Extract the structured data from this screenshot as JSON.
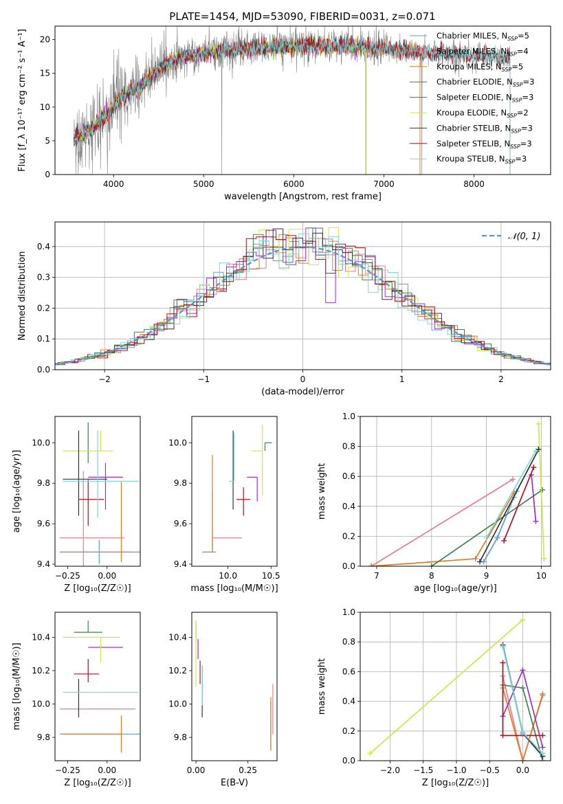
{
  "figure_title": "PLATE=1454, MJD=53090, FIBERID=0031, z=0.071",
  "colors": {
    "Chabrier MILES": "#5b9bd5",
    "Salpeter MILES": "#e87c8c",
    "Kroupa MILES": "#e07b1f",
    "Chabrier ELODIE": "#3f7f4f",
    "Salpeter ELODIE": "#9b30c0",
    "Kroupa ELODIE": "#cfe64a",
    "Chabrier STELIB": "#333333",
    "Salpeter STELIB": "#b01020",
    "Kroupa STELIB": "#7fd6d8",
    "data": "#808080",
    "normal": "#5b8fd0"
  },
  "chart_data": [
    {
      "id": "spectrum",
      "type": "line",
      "xlabel": "wavelength [Angstrom, rest frame]",
      "ylabel": "Flux [f_λ 10⁻¹⁷ erg cm⁻² s⁻¹ A⁻¹]",
      "xlim": [
        3350,
        8850
      ],
      "ylim": [
        0,
        22
      ],
      "xticks": [
        4000,
        5000,
        6000,
        7000,
        8000
      ],
      "yticks": [
        0,
        5,
        10,
        15,
        20
      ],
      "grid": false,
      "legend_position": "upper-right",
      "legend": [
        {
          "base": "Chabrier MILES, N",
          "sub": "SSP",
          "suffix": "=5"
        },
        {
          "base": "Salpeter MILES, N",
          "sub": "SSP",
          "suffix": "=4"
        },
        {
          "base": "Kroupa MILES, N",
          "sub": "SSP",
          "suffix": "=5"
        },
        {
          "base": "Chabrier ELODIE, N",
          "sub": "SSP",
          "suffix": "=3"
        },
        {
          "base": "Salpeter ELODIE, N",
          "sub": "SSP",
          "suffix": "=3"
        },
        {
          "base": "Kroupa ELODIE, N",
          "sub": "SSP",
          "suffix": "=2"
        },
        {
          "base": "Chabrier STELIB, N",
          "sub": "SSP",
          "suffix": "=3"
        },
        {
          "base": "Salpeter STELIB, N",
          "sub": "SSP",
          "suffix": "=3"
        },
        {
          "base": "Kroupa STELIB, N",
          "sub": "SSP",
          "suffix": "=3"
        }
      ],
      "continuum": {
        "x": [
          3550,
          3650,
          3750,
          3850,
          3950,
          4050,
          4150,
          4300,
          4450,
          4600,
          4800,
          5000,
          5200,
          5400,
          5600,
          5800,
          6000,
          6200,
          6400,
          6600,
          6800,
          7000,
          7200,
          7400,
          7600,
          7800,
          8000,
          8200,
          8400
        ],
        "y": [
          5.0,
          6.0,
          6.8,
          8.0,
          9.0,
          11.0,
          12.0,
          13.0,
          15.0,
          16.5,
          17.5,
          18.0,
          18.5,
          18.5,
          18.7,
          19.0,
          19.0,
          19.2,
          19.0,
          19.0,
          18.9,
          18.7,
          18.4,
          18.2,
          18.0,
          17.8,
          17.7,
          17.5,
          17.3
        ]
      },
      "dips": [
        {
          "x": 3933,
          "y": 0
        },
        {
          "x": 5200,
          "y": 0
        },
        {
          "x": 6800,
          "y": 0
        },
        {
          "x": 7420,
          "y": 0
        }
      ]
    },
    {
      "id": "residual-histogram",
      "type": "histogram",
      "xlabel": "(data-model)/error",
      "ylabel": "Normed distribution",
      "xlim": [
        -2.5,
        2.5
      ],
      "ylim": [
        0,
        0.48
      ],
      "xticks": [
        -2,
        -1,
        0,
        1,
        2
      ],
      "yticks": [
        0.0,
        0.1,
        0.2,
        0.3,
        0.4
      ],
      "grid": true,
      "legend_position": "upper-right",
      "legend": [
        {
          "label": "𝒩(0, 1)"
        }
      ],
      "bin_width": 0.1,
      "normal": {
        "mean": 0,
        "sigma": 1
      }
    },
    {
      "id": "age-vs-Z",
      "type": "errorbar",
      "xlabel": "Z [log₁₀(Z/Z☉)]",
      "ylabel": "age [log₁₀(age/yr)]",
      "xlim": [
        -0.33,
        0.21
      ],
      "ylim": [
        9.39,
        10.13
      ],
      "xticks": [
        -0.25,
        0.0
      ],
      "yticks": [
        9.4,
        9.6,
        9.8,
        10.0
      ],
      "grid": false,
      "points": [
        {
          "model": "Chabrier MILES",
          "x": -0.05,
          "xerr": [
            0.25,
            0.3
          ],
          "y": 9.46,
          "yerr": [
            0.06,
            0.06
          ]
        },
        {
          "model": "Salpeter MILES",
          "x": -0.15,
          "xerr": [
            0.15,
            0.26
          ],
          "y": 9.53,
          "yerr": [
            0.2,
            0.33
          ]
        },
        {
          "model": "Kroupa MILES",
          "x": 0.09,
          "xerr": [
            0.38,
            0.06
          ],
          "y": 9.46,
          "yerr": [
            0.05,
            0.35
          ]
        },
        {
          "model": "Chabrier ELODIE",
          "x": -0.12,
          "xerr": [
            0.0,
            0.0
          ],
          "y": 10.0,
          "yerr": [
            0.1,
            0.1
          ]
        },
        {
          "model": "Salpeter ELODIE",
          "x": -0.01,
          "xerr": [
            0.11,
            0.11
          ],
          "y": 9.83,
          "yerr": [
            0.16,
            0.07
          ]
        },
        {
          "model": "Kroupa ELODIE",
          "x": -0.04,
          "xerr": [
            0.24,
            0.08
          ],
          "y": 9.96,
          "yerr": [
            0.0,
            0.1
          ]
        },
        {
          "model": "Chabrier STELIB",
          "x": -0.18,
          "xerr": [
            0.1,
            0.18
          ],
          "y": 9.82,
          "yerr": [
            0.18,
            0.24
          ]
        },
        {
          "model": "Salpeter STELIB",
          "x": -0.12,
          "xerr": [
            0.06,
            0.1
          ],
          "y": 9.72,
          "yerr": [
            0.13,
            0.1
          ]
        },
        {
          "model": "Kroupa STELIB",
          "x": -0.06,
          "xerr": [
            0.22,
            0.26
          ],
          "y": 9.81,
          "yerr": [
            0.18,
            0.25
          ]
        }
      ]
    },
    {
      "id": "age-vs-mass",
      "type": "errorbar",
      "xlabel": "mass [log₁₀(M/M☉)]",
      "ylabel": "",
      "xlim": [
        9.58,
        10.57
      ],
      "ylim": [
        9.39,
        10.13
      ],
      "xticks": [
        10.0,
        10.5
      ],
      "yticks": [
        9.4,
        9.6,
        9.8,
        10.0
      ],
      "grid": false,
      "points": [
        {
          "model": "Chabrier MILES",
          "x": 9.82,
          "xerr": [
            0.1,
            0.04
          ],
          "y": 9.46,
          "yerr": [
            0.0,
            0.3
          ]
        },
        {
          "model": "Salpeter MILES",
          "x": 9.97,
          "xerr": [
            0.15,
            0.19
          ],
          "y": 9.53,
          "yerr": [
            0.0,
            0.0
          ]
        },
        {
          "model": "Kroupa MILES",
          "x": 9.82,
          "xerr": [
            0.12,
            0.0
          ],
          "y": 9.46,
          "yerr": [
            0.0,
            0.48
          ]
        },
        {
          "model": "Chabrier ELODIE",
          "x": 10.43,
          "xerr": [
            0.0,
            0.08
          ],
          "y": 10.0,
          "yerr": [
            0.04,
            0.0
          ]
        },
        {
          "model": "Salpeter ELODIE",
          "x": 10.34,
          "xerr": [
            0.12,
            0.0
          ],
          "y": 9.83,
          "yerr": [
            0.12,
            0.0
          ]
        },
        {
          "model": "Kroupa ELODIE",
          "x": 10.4,
          "xerr": [
            0.13,
            0.0
          ],
          "y": 9.96,
          "yerr": [
            0.22,
            0.13
          ]
        },
        {
          "model": "Chabrier STELIB",
          "x": 10.06,
          "xerr": [
            0.0,
            0.0
          ],
          "y": 9.82,
          "yerr": [
            0.15,
            0.24
          ]
        },
        {
          "model": "Salpeter STELIB",
          "x": 10.18,
          "xerr": [
            0.08,
            0.08
          ],
          "y": 9.72,
          "yerr": [
            0.08,
            0.06
          ]
        },
        {
          "model": "Kroupa STELIB",
          "x": 10.07,
          "xerr": [
            0.06,
            0.0
          ],
          "y": 9.81,
          "yerr": [
            0.0,
            0.24
          ]
        }
      ]
    },
    {
      "id": "weight-vs-age",
      "type": "line",
      "xlabel": "age [log₁₀(age/yr)]",
      "ylabel": "mass weight",
      "xlim": [
        6.7,
        10.17
      ],
      "ylim": [
        0,
        1.0
      ],
      "xticks": [
        7,
        8,
        9,
        10
      ],
      "yticks": [
        0.0,
        0.2,
        0.4,
        0.6,
        0.8,
        1.0
      ],
      "grid": true,
      "series": [
        {
          "model": "Salpeter MILES",
          "x": [
            6.9,
            9.48
          ],
          "y": [
            0.0,
            0.58
          ]
        },
        {
          "model": "Chabrier MILES",
          "x": [
            8.95,
            9.2,
            9.5,
            9.55,
            9.95
          ],
          "y": [
            0.03,
            0.19,
            0.46,
            0.5,
            0.78
          ]
        },
        {
          "model": "Kroupa MILES",
          "x": [
            6.9,
            8.8,
            9.5
          ],
          "y": [
            0.0,
            0.05,
            0.49
          ]
        },
        {
          "model": "Chabrier ELODIE",
          "x": [
            8.0,
            10.02
          ],
          "y": [
            0.0,
            0.51
          ]
        },
        {
          "model": "Salpeter ELODIE",
          "x": [
            9.82,
            9.9
          ],
          "y": [
            0.61,
            0.3
          ]
        },
        {
          "model": "Kroupa ELODIE",
          "x": [
            9.95,
            10.05
          ],
          "y": [
            0.95,
            0.05
          ]
        },
        {
          "model": "Chabrier STELIB",
          "x": [
            8.88,
            9.95
          ],
          "y": [
            0.03,
            0.78
          ]
        },
        {
          "model": "Salpeter STELIB",
          "x": [
            9.32,
            9.86
          ],
          "y": [
            0.17,
            0.66
          ]
        },
        {
          "model": "Kroupa STELIB",
          "x": [
            9.0,
            9.9
          ],
          "y": [
            0.19,
            0.77
          ]
        }
      ]
    },
    {
      "id": "mass-vs-Z",
      "type": "errorbar",
      "xlabel": "Z [log₁₀(Z/Z☉)]",
      "ylabel": "mass [log₁₀(M/M☉)]",
      "xlim": [
        -0.33,
        0.21
      ],
      "ylim": [
        9.66,
        10.55
      ],
      "xticks": [
        -0.25,
        0.0
      ],
      "yticks": [
        9.8,
        10.0,
        10.2,
        10.4
      ],
      "grid": false,
      "points": [
        {
          "model": "Chabrier MILES",
          "x": -0.05,
          "xerr": [
            0.25,
            0.3
          ],
          "y": 9.82,
          "yerr": [
            0.0,
            0.0
          ]
        },
        {
          "model": "Salpeter MILES",
          "x": -0.05,
          "xerr": [
            0.25,
            0.23
          ],
          "y": 9.97,
          "yerr": [
            0.0,
            0.0
          ]
        },
        {
          "model": "Kroupa MILES",
          "x": 0.09,
          "xerr": [
            0.38,
            0.0
          ],
          "y": 9.82,
          "yerr": [
            0.11,
            0.11
          ]
        },
        {
          "model": "Chabrier ELODIE",
          "x": -0.12,
          "xerr": [
            0.09,
            0.09
          ],
          "y": 10.43,
          "yerr": [
            0.0,
            0.07
          ]
        },
        {
          "model": "Salpeter ELODIE",
          "x": -0.01,
          "xerr": [
            0.11,
            0.11
          ],
          "y": 10.34,
          "yerr": [
            0.0,
            0.0
          ]
        },
        {
          "model": "Kroupa ELODIE",
          "x": -0.04,
          "xerr": [
            0.24,
            0.12
          ],
          "y": 10.4,
          "yerr": [
            0.15,
            0.0
          ]
        },
        {
          "model": "Chabrier STELIB",
          "x": -0.18,
          "xerr": [
            0.0,
            0.0
          ],
          "y": 10.15,
          "yerr": [
            0.23,
            0.0
          ]
        },
        {
          "model": "Salpeter STELIB",
          "x": -0.12,
          "xerr": [
            0.09,
            0.07
          ],
          "y": 10.18,
          "yerr": [
            0.05,
            0.09
          ]
        },
        {
          "model": "Kroupa STELIB",
          "x": -0.06,
          "xerr": [
            0.22,
            0.26
          ],
          "y": 10.07,
          "yerr": [
            0.0,
            0.0
          ]
        }
      ]
    },
    {
      "id": "mass-vs-ebv",
      "type": "errorbar",
      "xlabel": "E(B-V)",
      "ylabel": "",
      "xlim": [
        -0.02,
        0.39
      ],
      "ylim": [
        9.66,
        10.55
      ],
      "xticks": [
        0.0,
        0.25
      ],
      "yticks": [
        9.8,
        10.0,
        10.2,
        10.4
      ],
      "grid": false,
      "points": [
        {
          "model": "Chabrier MILES",
          "x": 0.36,
          "xerr": [
            0,
            0
          ],
          "y": 9.82,
          "yerr": [
            0.1,
            0.2
          ]
        },
        {
          "model": "Salpeter MILES",
          "x": 0.37,
          "xerr": [
            0,
            0
          ],
          "y": 9.97,
          "yerr": [
            0.15,
            0.15
          ]
        },
        {
          "model": "Kroupa MILES",
          "x": 0.36,
          "xerr": [
            0,
            0
          ],
          "y": 9.82,
          "yerr": [
            0.1,
            0.22
          ]
        },
        {
          "model": "Chabrier ELODIE",
          "x": 0.0,
          "xerr": [
            0,
            0
          ],
          "y": 10.43,
          "yerr": [
            0.05,
            0.07
          ]
        },
        {
          "model": "Salpeter ELODIE",
          "x": 0.01,
          "xerr": [
            0,
            0
          ],
          "y": 10.34,
          "yerr": [
            0.07,
            0.05
          ]
        },
        {
          "model": "Kroupa ELODIE",
          "x": 0.0,
          "xerr": [
            0,
            0
          ],
          "y": 10.4,
          "yerr": [
            0.3,
            0.1
          ]
        },
        {
          "model": "Chabrier STELIB",
          "x": 0.03,
          "xerr": [
            0,
            0
          ],
          "y": 10.15,
          "yerr": [
            0.23,
            0.08
          ]
        },
        {
          "model": "Salpeter STELIB",
          "x": 0.02,
          "xerr": [
            0,
            0
          ],
          "y": 10.18,
          "yerr": [
            0.06,
            0.08
          ]
        },
        {
          "model": "Kroupa STELIB",
          "x": 0.03,
          "xerr": [
            0,
            0
          ],
          "y": 10.07,
          "yerr": [
            0.08,
            0.16
          ]
        }
      ]
    },
    {
      "id": "weight-vs-Z",
      "type": "line",
      "xlabel": "Z [log₁₀(Z/Z☉)]",
      "ylabel": "mass weight",
      "xlim": [
        -2.45,
        0.42
      ],
      "ylim": [
        0,
        1.0
      ],
      "xticks": [
        -2.0,
        -1.5,
        -1.0,
        -0.5,
        0.0
      ],
      "yticks": [
        0.0,
        0.2,
        0.4,
        0.6,
        0.8,
        1.0
      ],
      "grid": true,
      "series": [
        {
          "model": "Kroupa ELODIE",
          "x": [
            -2.3,
            0.0
          ],
          "y": [
            0.05,
            0.95
          ]
        },
        {
          "model": "Chabrier MILES",
          "x": [
            -0.3,
            0.0,
            0.3
          ],
          "y": [
            0.77,
            0.18,
            0.03
          ]
        },
        {
          "model": "Salpeter MILES",
          "x": [
            -0.3,
            0.0,
            0.3
          ],
          "y": [
            0.57,
            0.0,
            0.44
          ]
        },
        {
          "model": "Kroupa MILES",
          "x": [
            -0.3,
            0.0,
            0.3
          ],
          "y": [
            0.49,
            0.0,
            0.45
          ]
        },
        {
          "model": "Chabrier ELODIE",
          "x": [
            -0.3,
            0.0,
            0.3
          ],
          "y": [
            0.51,
            0.49,
            0.0
          ]
        },
        {
          "model": "Salpeter ELODIE",
          "x": [
            -0.3,
            0.0,
            0.3
          ],
          "y": [
            0.3,
            0.61,
            0.09
          ]
        },
        {
          "model": "Chabrier STELIB",
          "x": [
            -0.3,
            0.0,
            0.3
          ],
          "y": [
            0.78,
            0.19,
            0.03
          ]
        },
        {
          "model": "Salpeter STELIB",
          "x": [
            -0.3,
            -0.3,
            0.3
          ],
          "y": [
            0.66,
            0.17,
            0.17
          ]
        },
        {
          "model": "Kroupa STELIB",
          "x": [
            -0.3,
            0.0,
            0.3
          ],
          "y": [
            0.77,
            0.19,
            0.05
          ]
        }
      ]
    }
  ]
}
